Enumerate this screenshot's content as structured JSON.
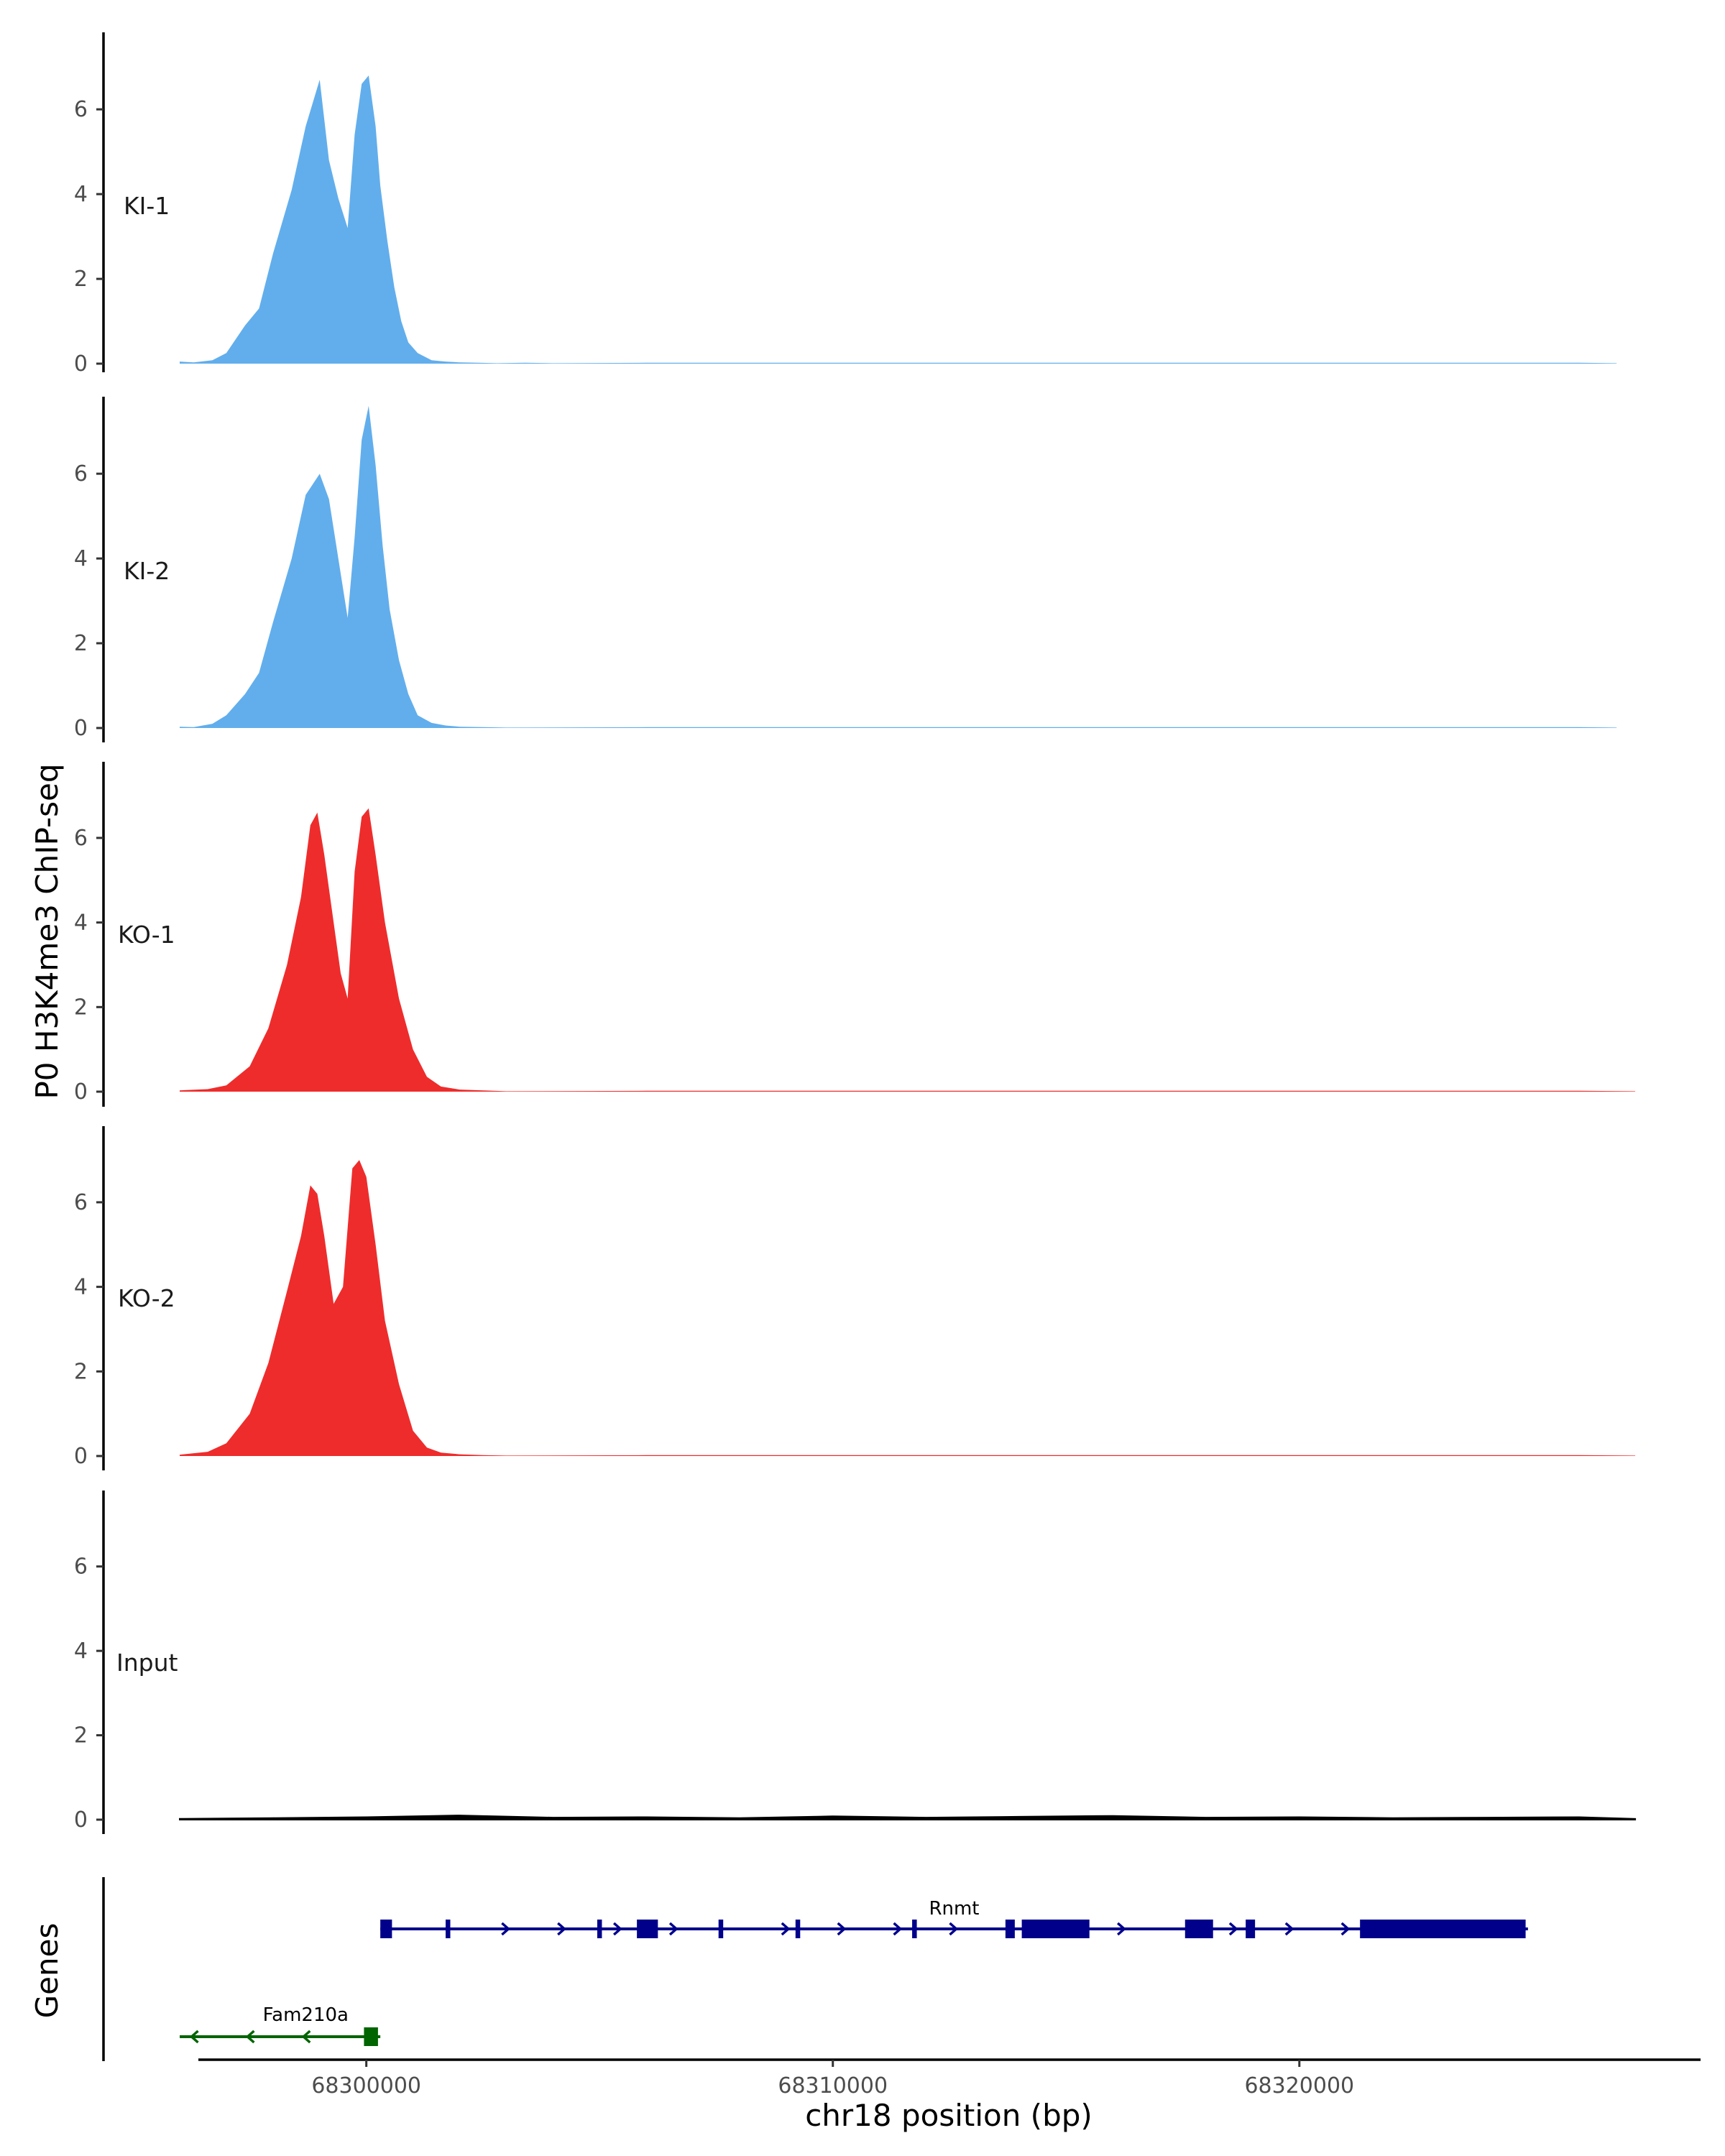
{
  "chart_data": {
    "type": "area",
    "title": "",
    "ylabel": "P0 H3K4me3 ChIP-seq",
    "xlabel": "chr18 position (bp)",
    "xlim": [
      68296400,
      68328600
    ],
    "ylim": [
      0,
      7.8
    ],
    "x_ticks": [
      68300000,
      68310000,
      68320000
    ],
    "x_tick_labels": [
      "68300000",
      "68310000",
      "68320000"
    ],
    "y_ticks": [
      0,
      2,
      4,
      6
    ],
    "y_tick_labels": [
      "0",
      "2",
      "4",
      "6"
    ],
    "genes_label": "Genes",
    "colors": {
      "ki": "#62aeec",
      "ko": "#ee2c2c",
      "input": "#000000",
      "rnmt": "#00008b",
      "fam210a": "#006400"
    },
    "series": [
      {
        "name": "KI-1",
        "color": "#62aeec",
        "x": [
          68296000,
          68296300,
          68296700,
          68297000,
          68297400,
          68297700,
          68298000,
          68298400,
          68298700,
          68299000,
          68299200,
          68299400,
          68299600,
          68299750,
          68299900,
          68300050,
          68300200,
          68300300,
          68300450,
          68300600,
          68300750,
          68300900,
          68301100,
          68301400,
          68301700,
          68302000,
          68302400,
          68302800,
          68303400,
          68304000,
          68306000,
          68310000,
          68314000,
          68318000,
          68322000,
          68326000,
          68326800
        ],
        "y": [
          0.05,
          0.03,
          0.08,
          0.25,
          0.9,
          1.3,
          2.6,
          4.1,
          5.6,
          6.7,
          4.8,
          3.9,
          3.2,
          5.4,
          6.6,
          6.8,
          5.6,
          4.2,
          2.9,
          1.8,
          1.0,
          0.5,
          0.25,
          0.08,
          0.05,
          0.03,
          0.02,
          0.01,
          0.02,
          0.01,
          0.02,
          0.02,
          0.02,
          0.02,
          0.02,
          0.02,
          0.01
        ]
      },
      {
        "name": "KI-2",
        "color": "#62aeec",
        "x": [
          68296000,
          68296300,
          68296700,
          68297000,
          68297400,
          68297700,
          68298000,
          68298400,
          68298700,
          68299000,
          68299200,
          68299400,
          68299600,
          68299750,
          68299900,
          68300050,
          68300200,
          68300350,
          68300500,
          68300700,
          68300900,
          68301100,
          68301400,
          68301700,
          68302000,
          68302500,
          68303000,
          68306000,
          68310000,
          68314000,
          68318000,
          68322000,
          68326000,
          68326800
        ],
        "y": [
          0.03,
          0.02,
          0.1,
          0.3,
          0.8,
          1.3,
          2.5,
          4.0,
          5.5,
          6.0,
          5.4,
          4.0,
          2.6,
          4.5,
          6.8,
          7.6,
          6.2,
          4.3,
          2.8,
          1.6,
          0.8,
          0.3,
          0.12,
          0.06,
          0.03,
          0.02,
          0.01,
          0.02,
          0.02,
          0.02,
          0.02,
          0.02,
          0.02,
          0.01
        ]
      },
      {
        "name": "KO-1",
        "color": "#ee2c2c",
        "x": [
          68296000,
          68296600,
          68297000,
          68297500,
          68297900,
          68298300,
          68298600,
          68298800,
          68298950,
          68299100,
          68299300,
          68299450,
          68299600,
          68299750,
          68299900,
          68300050,
          68300200,
          68300400,
          68300700,
          68301000,
          68301300,
          68301600,
          68302000,
          68302500,
          68303000,
          68306000,
          68310000,
          68314000,
          68318000,
          68322000,
          68326000,
          68327200
        ],
        "y": [
          0.03,
          0.06,
          0.15,
          0.6,
          1.5,
          3.0,
          4.6,
          6.3,
          6.6,
          5.6,
          4.0,
          2.8,
          2.2,
          5.2,
          6.5,
          6.7,
          5.6,
          4.0,
          2.2,
          1.0,
          0.35,
          0.12,
          0.05,
          0.03,
          0.01,
          0.02,
          0.02,
          0.02,
          0.02,
          0.02,
          0.02,
          0.01
        ]
      },
      {
        "name": "KO-2",
        "color": "#ee2c2c",
        "x": [
          68296000,
          68296600,
          68297000,
          68297500,
          68297900,
          68298300,
          68298600,
          68298800,
          68298950,
          68299100,
          68299300,
          68299500,
          68299700,
          68299850,
          68300000,
          68300200,
          68300400,
          68300700,
          68301000,
          68301300,
          68301600,
          68302000,
          68302500,
          68303000,
          68306000,
          68310000,
          68314000,
          68318000,
          68322000,
          68326000,
          68327200
        ],
        "y": [
          0.03,
          0.1,
          0.3,
          1.0,
          2.2,
          3.9,
          5.2,
          6.4,
          6.2,
          5.2,
          3.6,
          4.0,
          6.8,
          7.0,
          6.6,
          5.0,
          3.2,
          1.7,
          0.6,
          0.2,
          0.08,
          0.04,
          0.02,
          0.01,
          0.02,
          0.02,
          0.02,
          0.02,
          0.02,
          0.02,
          0.01
        ]
      },
      {
        "name": "Input",
        "color": "#000000",
        "x": [
          68296000,
          68298000,
          68300000,
          68302000,
          68304000,
          68306000,
          68308000,
          68310000,
          68312000,
          68314000,
          68316000,
          68318000,
          68320000,
          68322000,
          68324000,
          68326000,
          68327200
        ],
        "y": [
          0.02,
          0.04,
          0.06,
          0.1,
          0.05,
          0.06,
          0.04,
          0.08,
          0.05,
          0.07,
          0.09,
          0.05,
          0.06,
          0.04,
          0.05,
          0.06,
          0.02
        ]
      }
    ],
    "genes": [
      {
        "name": "Rnmt",
        "strand": "+",
        "color": "#00008b",
        "label_x": 68312600,
        "start": 68300300,
        "end": 68324900,
        "exons": [
          [
            68300300,
            68300550
          ],
          [
            68301700,
            68301800
          ],
          [
            68304950,
            68305050
          ],
          [
            68305800,
            68306250
          ],
          [
            68307550,
            68307650
          ],
          [
            68309200,
            68309300
          ],
          [
            68311700,
            68311800
          ],
          [
            68313700,
            68313900
          ],
          [
            68314050,
            68315500
          ],
          [
            68317550,
            68318150
          ],
          [
            68318850,
            68319050
          ],
          [
            68321300,
            68324850
          ]
        ]
      },
      {
        "name": "Fam210a",
        "strand": "-",
        "color": "#006400",
        "label_x": 68298700,
        "start": 68296000,
        "end": 68300300,
        "exons": [
          [
            68299950,
            68300250
          ]
        ]
      }
    ]
  }
}
